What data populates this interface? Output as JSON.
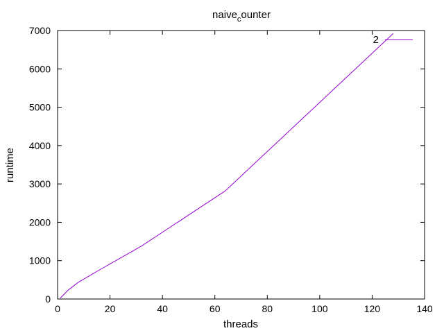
{
  "chart_data": {
    "type": "line",
    "title": {
      "main": "naive",
      "sub": "c",
      "rest": "ounter"
    },
    "xlabel": "threads",
    "ylabel": "runtime",
    "xlim": [
      0,
      140
    ],
    "ylim": [
      0,
      7000
    ],
    "xticks": [
      0,
      20,
      40,
      60,
      80,
      100,
      120,
      140
    ],
    "yticks": [
      0,
      1000,
      2000,
      3000,
      4000,
      5000,
      6000,
      7000
    ],
    "grid": false,
    "legend_position": "top-right",
    "series": [
      {
        "name": "2",
        "color": "#9400d3",
        "x": [
          1,
          2,
          4,
          8,
          16,
          32,
          64,
          128
        ],
        "y": [
          20,
          90,
          230,
          440,
          760,
          1380,
          2820,
          6920
        ]
      }
    ]
  }
}
